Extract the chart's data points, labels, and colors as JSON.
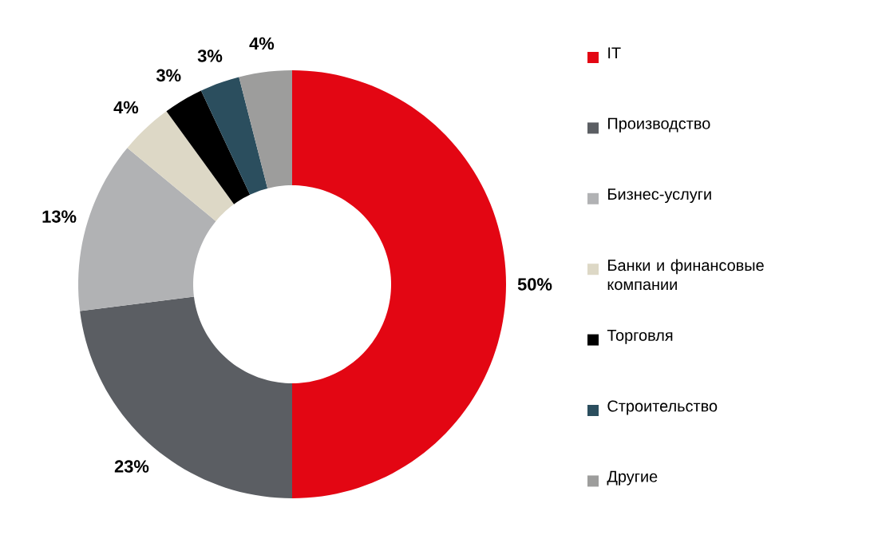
{
  "chart_data": {
    "type": "donut",
    "categories": [
      "IT",
      "Производство",
      "Бизнес-услуги",
      "Банки и финансовые компании",
      "Торговля",
      "Строительство",
      "Другие"
    ],
    "values": [
      50,
      23,
      13,
      4,
      3,
      3,
      4
    ],
    "colors": [
      "#e30613",
      "#5b5e63",
      "#b1b2b4",
      "#ddd8c6",
      "#000000",
      "#2b4e5e",
      "#9d9d9c"
    ],
    "value_labels": [
      "50%",
      "23%",
      "13%",
      "4%",
      "3%",
      "3%",
      "4%"
    ],
    "legend": "right"
  }
}
